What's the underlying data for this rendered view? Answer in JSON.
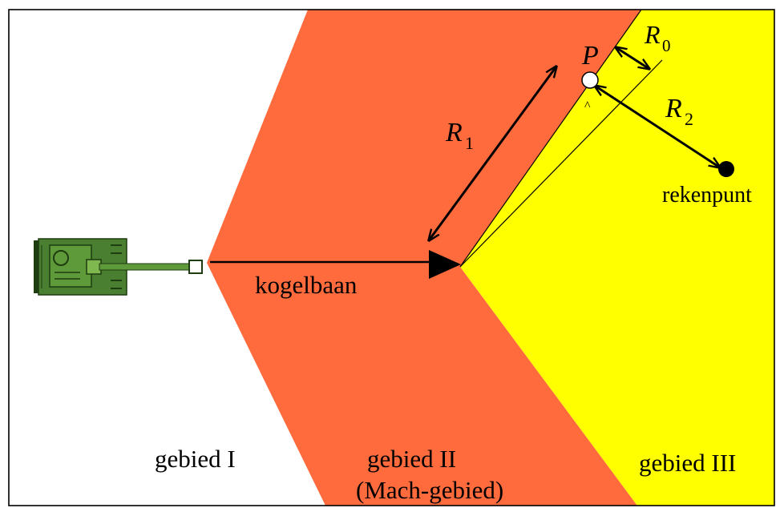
{
  "regions": {
    "gebied_1": "gebied I",
    "gebied_2_line1": "gebied II",
    "gebied_2_line2": "(Mach-gebied)",
    "gebied_3": "gebied III"
  },
  "labels": {
    "trajectory": "kogelbaan",
    "point_p": "P",
    "calc_point": "rekenpunt",
    "r0_main": "R",
    "r0_sub": "0",
    "r1_main": "R",
    "r1_sub": "1",
    "r2_main": "R",
    "r2_sub": "2",
    "angle_mark": "^"
  },
  "colors": {
    "region_1": "#ffffff",
    "region_2": "#ff6b3d",
    "region_3": "#ffff00",
    "tank_body": "#4a7f32",
    "tank_dark": "#1e3d10",
    "tank_light": "#7fb84e",
    "ink": "#000000"
  },
  "icons": {
    "tank": "tank-icon",
    "point_p": "open-circle-marker",
    "calc_point": "filled-circle-marker"
  }
}
